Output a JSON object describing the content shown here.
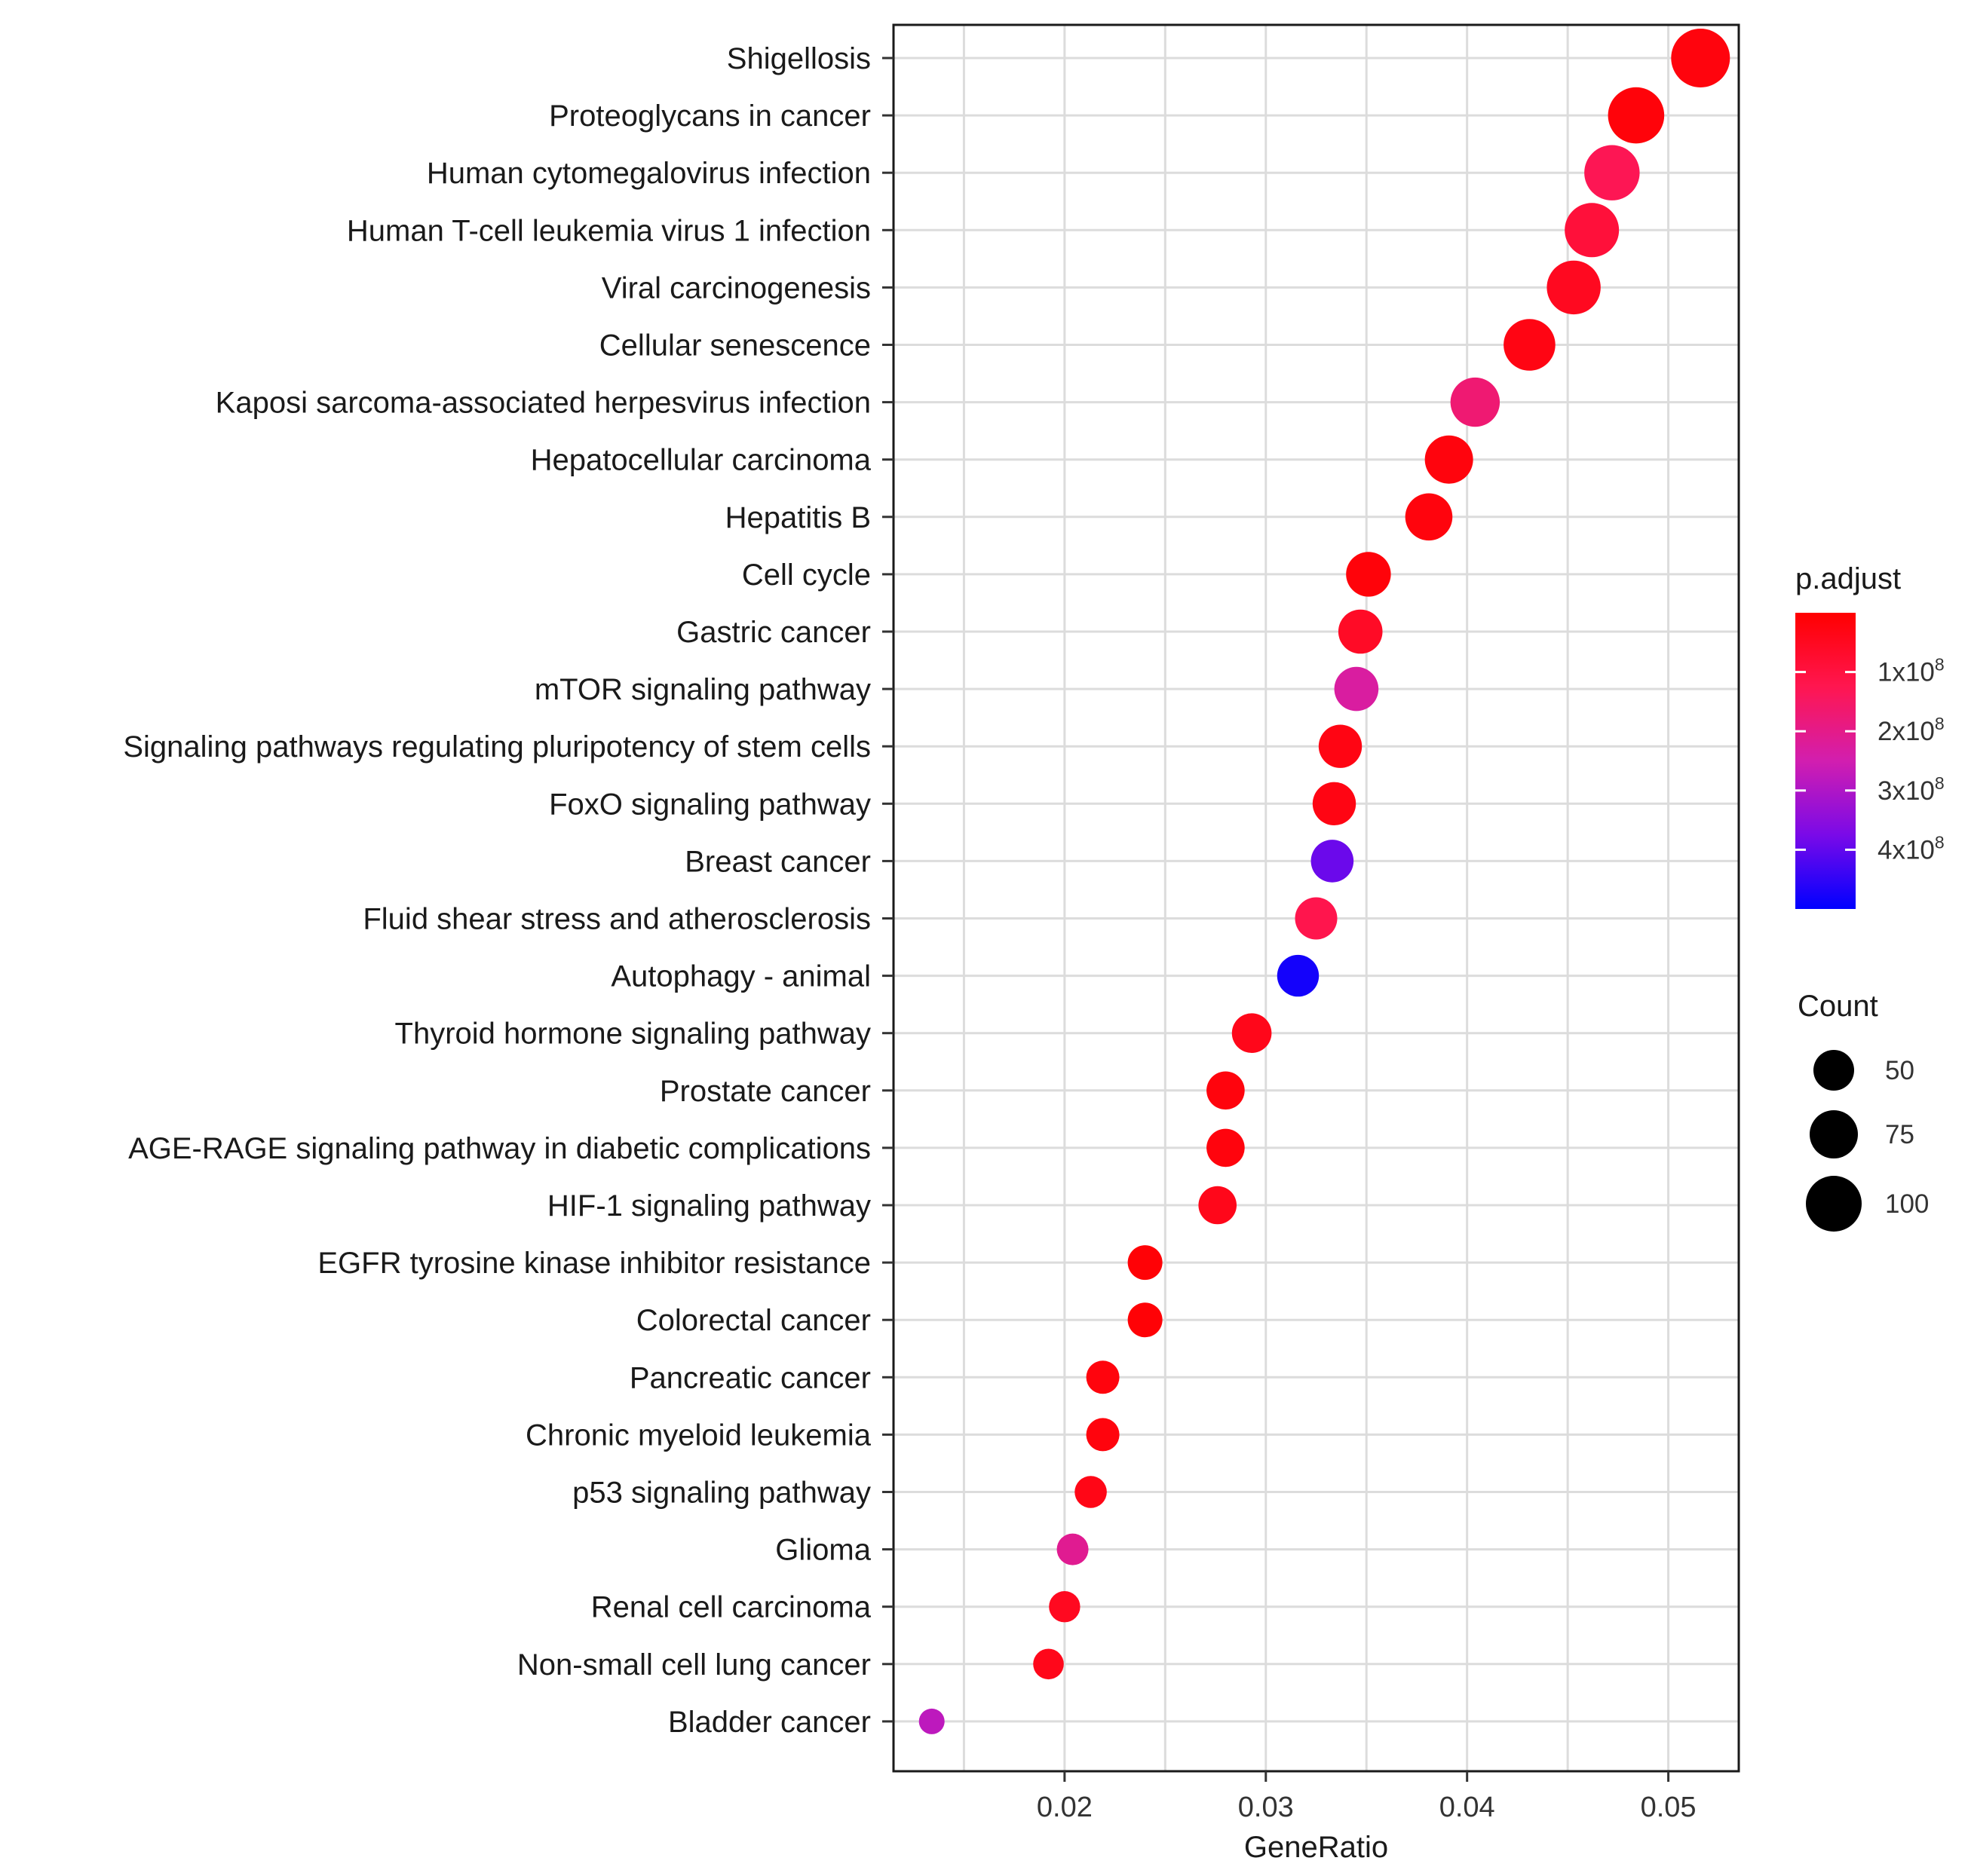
{
  "chart_data": {
    "type": "scatter",
    "xlabel": "GeneRatio",
    "xticks": [
      "0.02",
      "0.03",
      "0.04",
      "0.05"
    ],
    "xlim": [
      0.0115,
      0.0535
    ],
    "grid": true,
    "legend_position": "right",
    "color_legend": {
      "title": "p.adjust",
      "labels": [
        "1x10",
        "2x10",
        "3x10",
        "4x10"
      ],
      "exponent": "8",
      "colors": {
        "low": "#FF0000",
        "high": "#0000FF"
      }
    },
    "size_legend": {
      "title": "Count",
      "labels": [
        "50",
        "75",
        "100"
      ],
      "values": [
        50,
        75,
        100
      ]
    },
    "categories": [
      "Shigellosis",
      "Proteoglycans in cancer",
      "Human cytomegalovirus infection",
      "Human T-cell leukemia virus 1 infection",
      "Viral carcinogenesis",
      "Cellular senescence",
      "Kaposi sarcoma-associated herpesvirus infection",
      "Hepatocellular carcinoma",
      "Hepatitis B",
      "Cell cycle",
      "Gastric cancer",
      "mTOR signaling pathway",
      "Signaling pathways regulating pluripotency of stem cells",
      "FoxO signaling pathway",
      "Breast cancer",
      "Fluid shear stress and atherosclerosis",
      "Autophagy - animal",
      "Thyroid hormone signaling pathway",
      "Prostate cancer",
      "AGE-RAGE signaling pathway in diabetic complications",
      "HIF-1 signaling pathway",
      "EGFR tyrosine kinase inhibitor resistance",
      "Colorectal cancer",
      "Pancreatic cancer",
      "Chronic myeloid leukemia",
      "p53 signaling pathway",
      "Glioma",
      "Renal cell carcinoma",
      "Non-small cell lung cancer",
      "Bladder cancer"
    ],
    "gene_ratio": [
      0.0516,
      0.0484,
      0.0472,
      0.0462,
      0.0453,
      0.0431,
      0.0404,
      0.0391,
      0.0381,
      0.0351,
      0.0347,
      0.0345,
      0.0337,
      0.0334,
      0.0333,
      0.0325,
      0.0316,
      0.0293,
      0.028,
      0.028,
      0.0276,
      0.024,
      0.024,
      0.0219,
      0.0219,
      0.0213,
      0.0204,
      0.02,
      0.0192,
      0.0134
    ],
    "count": [
      90,
      85,
      83,
      81,
      80,
      76,
      71,
      69,
      67,
      62,
      61,
      61,
      59,
      59,
      58,
      57,
      56,
      52,
      49,
      49,
      49,
      42,
      42,
      39,
      39,
      37,
      36,
      35,
      34,
      24
    ],
    "p_adjust": [
      20000000.0,
      15000000.0,
      130000000.0,
      90000000.0,
      50000000.0,
      30000000.0,
      170000000.0,
      20000000.0,
      20000000.0,
      15000000.0,
      60000000.0,
      230000000.0,
      30000000.0,
      30000000.0,
      390000000.0,
      120000000.0,
      480000000.0,
      40000000.0,
      20000000.0,
      20000000.0,
      40000000.0,
      10000000.0,
      10000000.0,
      20000000.0,
      20000000.0,
      35000000.0,
      210000000.0,
      50000000.0,
      40000000.0,
      280000000.0
    ]
  }
}
